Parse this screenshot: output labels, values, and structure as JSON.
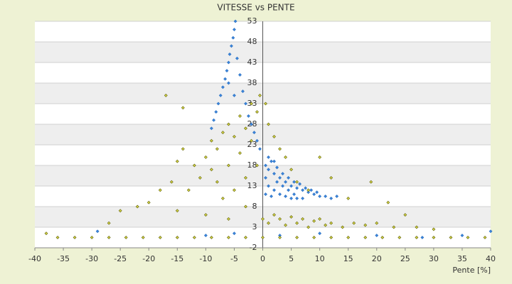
{
  "chart_data": {
    "type": "scatter",
    "title": "VITESSE vs PENTE",
    "x_label": "Pente [%]",
    "xlim": [
      -40,
      40
    ],
    "xticks": [
      -40,
      -35,
      -30,
      -25,
      -20,
      -15,
      -10,
      -5,
      0,
      5,
      10,
      15,
      20,
      25,
      30,
      35,
      40
    ],
    "ylim": [
      -2,
      53
    ],
    "yticks": [
      -2,
      3,
      8,
      13,
      18,
      23,
      28,
      33,
      38,
      43,
      48,
      53
    ],
    "grid": true,
    "series": [
      {
        "color": "#3c86dc",
        "edgecolor": "#2a6fc0",
        "x": [
          -4.8,
          -5,
          -5.2,
          -5.5,
          -5.8,
          -6,
          -6.3,
          -6.6,
          -7,
          -7.4,
          -7.8,
          -8.2,
          -8.6,
          -9,
          -4.5,
          -4,
          -3.5,
          -3,
          -2.5,
          -2,
          -1.5,
          -1,
          -0.5,
          -6,
          -5,
          0.5,
          1,
          1.5,
          2,
          2.5,
          3,
          3.5,
          4,
          4.5,
          5,
          5.5,
          6,
          6.5,
          7,
          7.5,
          8,
          8.5,
          9,
          9.5,
          10,
          11,
          12,
          13,
          1,
          2,
          3,
          4,
          5,
          6,
          1.5,
          0.5,
          2.5,
          3.5,
          4.5,
          5.5,
          7,
          0.5,
          1,
          2,
          -29,
          -10,
          -5,
          3,
          10,
          20,
          28,
          35,
          40
        ],
        "values": [
          53,
          51,
          49,
          47,
          45,
          43,
          41,
          39,
          37,
          35,
          33,
          31,
          29,
          27,
          44,
          40,
          36,
          33,
          30,
          28,
          26,
          24,
          22,
          38,
          35,
          18,
          17,
          19,
          16,
          17.5,
          15,
          16,
          14,
          15,
          13,
          14,
          12.5,
          13.5,
          12,
          12.5,
          11.5,
          12,
          11,
          11.5,
          10.5,
          10.5,
          10,
          10.5,
          13,
          12,
          11,
          10.5,
          10,
          10,
          10.5,
          11,
          14,
          13,
          12,
          11,
          10,
          15,
          20,
          19,
          2,
          1,
          1.5,
          1,
          1.5,
          1,
          0.5,
          1,
          2
        ]
      },
      {
        "color": "#d6d64a",
        "edgecolor": "#5c5c00",
        "x": [
          -10,
          -9,
          -8,
          -7,
          -6,
          -5,
          -4,
          -3,
          -2,
          -1,
          -12,
          -11,
          -14,
          -15,
          -13,
          -9,
          -8,
          -6,
          -4,
          -2,
          -1,
          -3,
          -5,
          -7,
          -16,
          -18,
          -20,
          -22,
          -25,
          -27,
          -15,
          -10,
          -6,
          -3,
          -17,
          -14,
          -0.5,
          0.5,
          1,
          2,
          3,
          4,
          5,
          6,
          8,
          10,
          12,
          15,
          19,
          22,
          25,
          0,
          1,
          2,
          3,
          4,
          5,
          6,
          7,
          8,
          9,
          10,
          11,
          12,
          14,
          16,
          18,
          20,
          23,
          27,
          30,
          -38,
          -36,
          -33,
          -30,
          -27,
          -24,
          -21,
          -18,
          -15,
          -12,
          -9,
          -6,
          -3,
          0,
          3,
          6,
          9,
          12,
          15,
          18,
          21,
          24,
          27,
          30,
          33,
          36,
          39
        ],
        "values": [
          20,
          24,
          22,
          26,
          28,
          25,
          30,
          27,
          33,
          31,
          18,
          15,
          22,
          19,
          12,
          17,
          14,
          18,
          21,
          24,
          18,
          15,
          12,
          10,
          14,
          12,
          9,
          8,
          7,
          4,
          7,
          6,
          5,
          8,
          35,
          32,
          35,
          33,
          28,
          25,
          22,
          20,
          17,
          14,
          12,
          20,
          15,
          10,
          14,
          9,
          6,
          5,
          4,
          6,
          5,
          3.5,
          5.5,
          4,
          5,
          3,
          4.5,
          5,
          3.5,
          4,
          3,
          4,
          3.5,
          4,
          3,
          3,
          2.5,
          1.5,
          0.5,
          0.5,
          0.5,
          0.5,
          0.5,
          0.5,
          0.5,
          0.5,
          0.5,
          0.5,
          0.5,
          0.5,
          0.5,
          0.5,
          0.5,
          0.5,
          0.5,
          0.5,
          0.5,
          0.5,
          0.5,
          0.5,
          0.5,
          0.5,
          0.5,
          0.5
        ]
      }
    ]
  }
}
